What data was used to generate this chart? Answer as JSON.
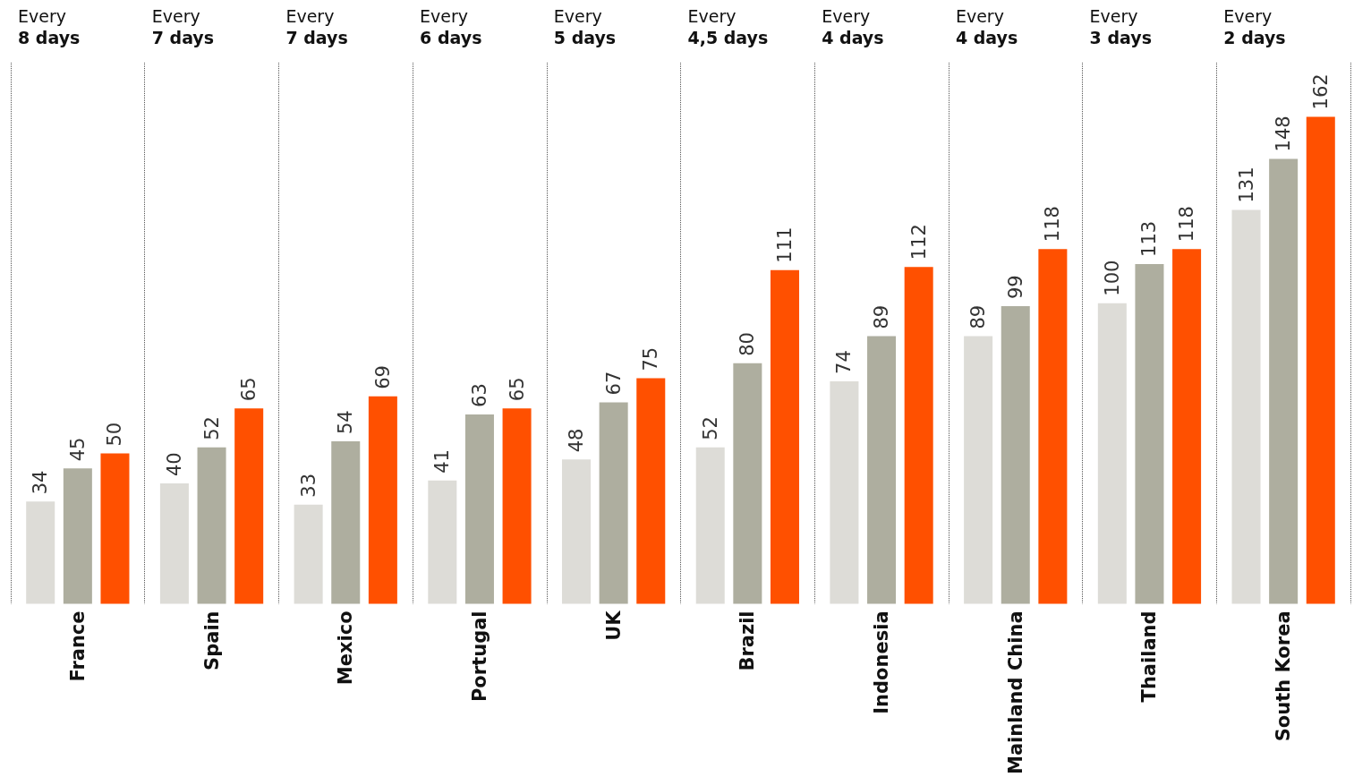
{
  "chart_data": {
    "type": "bar",
    "categories": [
      "France",
      "Spain",
      "Mexico",
      "Portugal",
      "UK",
      "Brazil",
      "Indonesia",
      "Mainland China",
      "Thailand",
      "South Korea"
    ],
    "series": [
      {
        "color": "#dddcd7",
        "values": [
          34,
          40,
          33,
          41,
          48,
          52,
          74,
          89,
          100,
          131
        ]
      },
      {
        "color": "#aeae9f",
        "values": [
          45,
          52,
          54,
          63,
          67,
          80,
          89,
          99,
          113,
          148
        ]
      },
      {
        "color": "#ff5000",
        "values": [
          50,
          65,
          69,
          65,
          75,
          111,
          112,
          118,
          118,
          162
        ]
      }
    ],
    "annotations": [
      "Every\n8 days",
      "Every\n7 days",
      "Every\n7 days",
      "Every\n6 days",
      "Every\n5 days",
      "Every\n4,5 days",
      "Every\n4 days",
      "Every\n4 days",
      "Every\n3 days",
      "Every\n2 days"
    ],
    "data_labels": true,
    "grid": "x"
  }
}
